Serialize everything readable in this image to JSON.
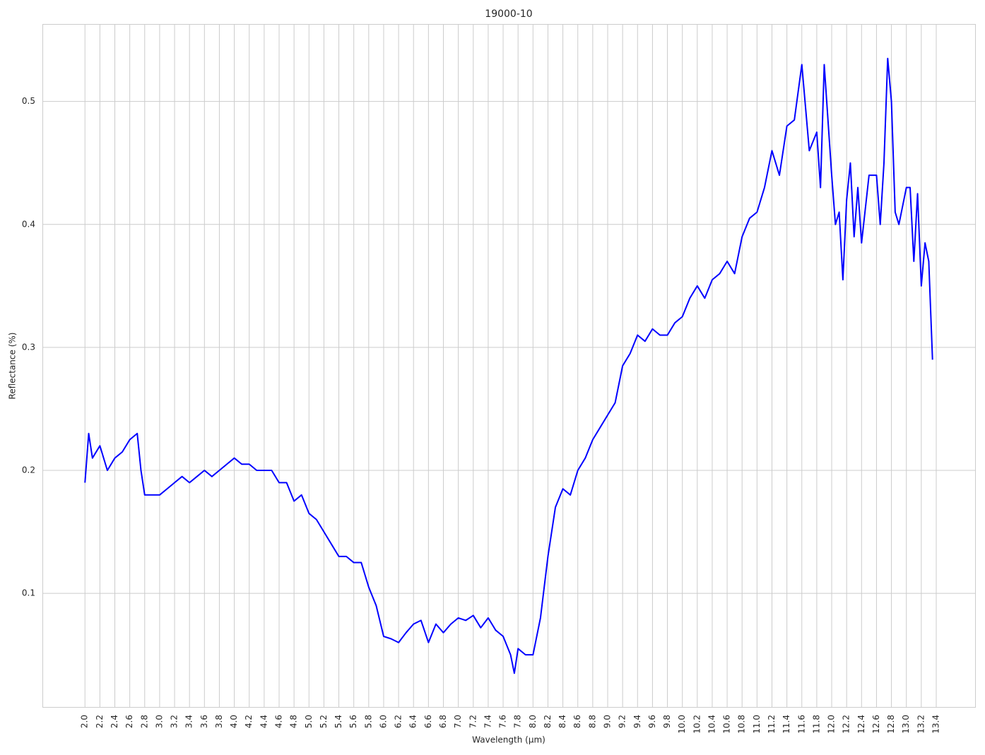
{
  "chart_data": {
    "type": "line",
    "title": "19000-10",
    "xlabel": "Wavelength (µm)",
    "ylabel": "Reflectance (%)",
    "x": [
      2.0,
      2.05,
      2.1,
      2.2,
      2.3,
      2.4,
      2.5,
      2.6,
      2.7,
      2.75,
      2.8,
      2.9,
      3.0,
      3.1,
      3.2,
      3.3,
      3.4,
      3.5,
      3.6,
      3.7,
      3.8,
      3.9,
      4.0,
      4.1,
      4.2,
      4.3,
      4.4,
      4.5,
      4.6,
      4.7,
      4.8,
      4.9,
      5.0,
      5.1,
      5.2,
      5.3,
      5.4,
      5.5,
      5.6,
      5.7,
      5.8,
      5.9,
      6.0,
      6.1,
      6.2,
      6.3,
      6.4,
      6.5,
      6.6,
      6.7,
      6.8,
      6.9,
      7.0,
      7.1,
      7.2,
      7.3,
      7.4,
      7.5,
      7.6,
      7.7,
      7.75,
      7.8,
      7.9,
      8.0,
      8.1,
      8.2,
      8.3,
      8.4,
      8.5,
      8.6,
      8.7,
      8.8,
      8.9,
      9.0,
      9.1,
      9.2,
      9.3,
      9.4,
      9.5,
      9.6,
      9.7,
      9.8,
      9.9,
      10.0,
      10.1,
      10.2,
      10.3,
      10.4,
      10.5,
      10.6,
      10.7,
      10.8,
      10.9,
      11.0,
      11.1,
      11.2,
      11.3,
      11.4,
      11.5,
      11.6,
      11.7,
      11.8,
      11.85,
      11.9,
      12.0,
      12.05,
      12.1,
      12.15,
      12.2,
      12.25,
      12.3,
      12.35,
      12.4,
      12.5,
      12.6,
      12.65,
      12.7,
      12.75,
      12.8,
      12.85,
      12.9,
      13.0,
      13.05,
      13.1,
      13.15,
      13.2,
      13.25,
      13.3,
      13.35
    ],
    "values": [
      0.19,
      0.23,
      0.21,
      0.22,
      0.2,
      0.21,
      0.215,
      0.225,
      0.23,
      0.2,
      0.18,
      0.18,
      0.18,
      0.185,
      0.19,
      0.195,
      0.19,
      0.195,
      0.2,
      0.195,
      0.2,
      0.205,
      0.21,
      0.205,
      0.205,
      0.2,
      0.2,
      0.2,
      0.19,
      0.19,
      0.175,
      0.18,
      0.165,
      0.16,
      0.15,
      0.14,
      0.13,
      0.13,
      0.125,
      0.125,
      0.105,
      0.09,
      0.065,
      0.063,
      0.06,
      0.068,
      0.075,
      0.078,
      0.06,
      0.075,
      0.068,
      0.075,
      0.08,
      0.078,
      0.082,
      0.072,
      0.08,
      0.07,
      0.065,
      0.05,
      0.035,
      0.055,
      0.05,
      0.05,
      0.08,
      0.13,
      0.17,
      0.185,
      0.18,
      0.2,
      0.21,
      0.225,
      0.235,
      0.245,
      0.255,
      0.285,
      0.295,
      0.31,
      0.305,
      0.315,
      0.31,
      0.31,
      0.32,
      0.325,
      0.34,
      0.35,
      0.34,
      0.355,
      0.36,
      0.37,
      0.36,
      0.39,
      0.405,
      0.41,
      0.43,
      0.46,
      0.44,
      0.48,
      0.485,
      0.53,
      0.46,
      0.475,
      0.43,
      0.53,
      0.44,
      0.4,
      0.41,
      0.355,
      0.42,
      0.45,
      0.39,
      0.43,
      0.385,
      0.44,
      0.44,
      0.4,
      0.45,
      0.535,
      0.5,
      0.41,
      0.4,
      0.43,
      0.43,
      0.37,
      0.425,
      0.35,
      0.385,
      0.37,
      0.29
    ],
    "color": "#0000ff",
    "grid": true,
    "xlim": [
      1.43,
      13.93
    ],
    "ylim": [
      0.007,
      0.563
    ],
    "yticks": [
      0.1,
      0.2,
      0.3,
      0.4,
      0.5
    ],
    "xticks": [
      {
        "value": 2.0,
        "label": "2.0"
      },
      {
        "value": 2.2,
        "label": "2.2"
      },
      {
        "value": 2.4,
        "label": "2.4"
      },
      {
        "value": 2.6,
        "label": "2.6"
      },
      {
        "value": 2.8,
        "label": "2.8"
      },
      {
        "value": 3.0,
        "label": "3.0"
      },
      {
        "value": 3.2,
        "label": "3.2"
      },
      {
        "value": 3.4,
        "label": "3.4"
      },
      {
        "value": 3.6,
        "label": "3.6"
      },
      {
        "value": 3.8,
        "label": "3.8"
      },
      {
        "value": 4.0,
        "label": "4.0"
      },
      {
        "value": 4.2,
        "label": "4.2"
      },
      {
        "value": 4.4,
        "label": "4.4"
      },
      {
        "value": 4.6,
        "label": "4.6"
      },
      {
        "value": 4.8,
        "label": "4.8"
      },
      {
        "value": 5.0,
        "label": "5.0"
      },
      {
        "value": 5.2,
        "label": "5.2"
      },
      {
        "value": 5.4,
        "label": "5.4"
      },
      {
        "value": 5.6,
        "label": "5.6"
      },
      {
        "value": 5.8,
        "label": "5.8"
      },
      {
        "value": 6.0,
        "label": "6.0"
      },
      {
        "value": 6.2,
        "label": "6.2"
      },
      {
        "value": 6.4,
        "label": "6.4"
      },
      {
        "value": 6.6,
        "label": "6.6"
      },
      {
        "value": 6.8,
        "label": "6.8"
      },
      {
        "value": 7.0,
        "label": "7.0"
      },
      {
        "value": 7.2,
        "label": "7.2"
      },
      {
        "value": 7.4,
        "label": "7.4"
      },
      {
        "value": 7.6,
        "label": "7.6"
      },
      {
        "value": 7.8,
        "label": "7.8"
      },
      {
        "value": 8.0,
        "label": "8.0"
      },
      {
        "value": 8.2,
        "label": "8.2"
      },
      {
        "value": 8.4,
        "label": "8.4"
      },
      {
        "value": 8.6,
        "label": "8.6"
      },
      {
        "value": 8.8,
        "label": "8.8"
      },
      {
        "value": 9.0,
        "label": "9.0"
      },
      {
        "value": 9.2,
        "label": "9.2"
      },
      {
        "value": 9.4,
        "label": "9.4"
      },
      {
        "value": 9.6,
        "label": "9.6"
      },
      {
        "value": 9.8,
        "label": "9.8"
      },
      {
        "value": 10.0,
        "label": "10.0"
      },
      {
        "value": 10.2,
        "label": "10.2"
      },
      {
        "value": 10.4,
        "label": "10.4"
      },
      {
        "value": 10.6,
        "label": "10.6"
      },
      {
        "value": 10.8,
        "label": "10.8"
      },
      {
        "value": 11.0,
        "label": "11.0"
      },
      {
        "value": 11.2,
        "label": "11.2"
      },
      {
        "value": 11.4,
        "label": "11.4"
      },
      {
        "value": 11.6,
        "label": "11.6"
      },
      {
        "value": 11.8,
        "label": "11.8"
      },
      {
        "value": 12.0,
        "label": "12.0"
      },
      {
        "value": 12.2,
        "label": "12.2"
      },
      {
        "value": 12.4,
        "label": "12.4"
      },
      {
        "value": 12.6,
        "label": "12.6"
      },
      {
        "value": 12.8,
        "label": "12.8"
      },
      {
        "value": 13.0,
        "label": "13.0"
      },
      {
        "value": 13.2,
        "label": "13.2"
      },
      {
        "value": 13.4,
        "label": "13.4"
      }
    ]
  }
}
